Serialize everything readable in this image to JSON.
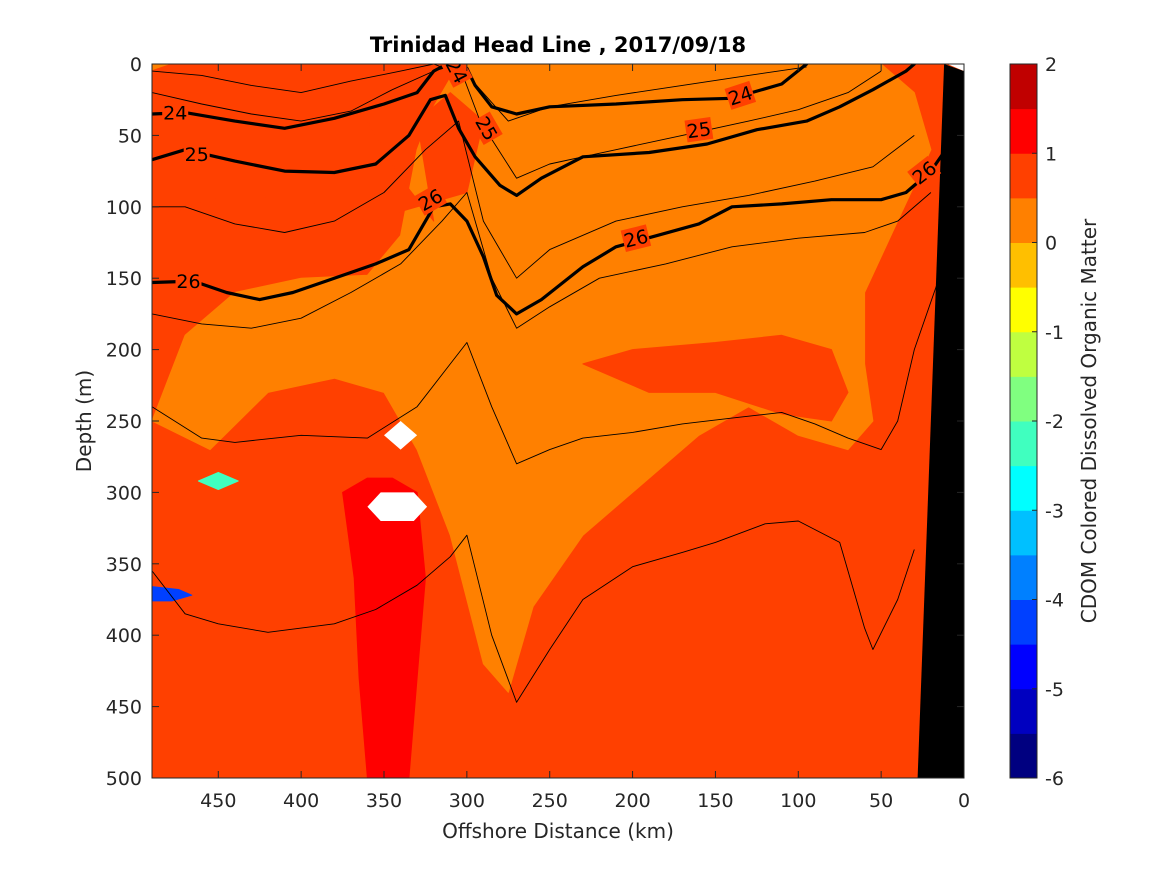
{
  "chart_data": {
    "type": "heatmap",
    "title": "Trinidad Head Line , 2017/09/18",
    "xlabel": "Offshore Distance (km)",
    "ylabel": "Depth (m)",
    "colorbar_label": "CDOM Colored Dissolved Organic Matter",
    "xlim": [
      490,
      0
    ],
    "ylim": [
      0,
      500
    ],
    "x_ticks": [
      "450",
      "400",
      "350",
      "300",
      "250",
      "200",
      "150",
      "100",
      "50",
      "0"
    ],
    "y_ticks": [
      "0",
      "50",
      "100",
      "150",
      "200",
      "250",
      "300",
      "350",
      "400",
      "450",
      "500"
    ],
    "colorbar_ticks": [
      "2",
      "1",
      "0",
      "-1",
      "-2",
      "-3",
      "-4",
      "-5",
      "-6"
    ],
    "colorbar_range": [
      -6,
      2
    ],
    "colorbar_step": 0.5,
    "colorbar_colors": [
      "#000080",
      "#0000c0",
      "#0000ff",
      "#0040ff",
      "#0080ff",
      "#00c0ff",
      "#00ffff",
      "#40ffbf",
      "#80ff80",
      "#bfff40",
      "#ffff00",
      "#ffbf00",
      "#ff8000",
      "#ff4000",
      "#ff0000",
      "#c00000"
    ],
    "background_value": 0.6,
    "regions": [
      {
        "value": 0.2,
        "points": [
          [
            490,
            250
          ],
          [
            470,
            190
          ],
          [
            440,
            160
          ],
          [
            400,
            150
          ],
          [
            360,
            148
          ],
          [
            340,
            120
          ],
          [
            330,
            60
          ],
          [
            320,
            30
          ],
          [
            310,
            10
          ],
          [
            300,
            0
          ],
          [
            250,
            0
          ],
          [
            200,
            0
          ],
          [
            150,
            0
          ],
          [
            100,
            0
          ],
          [
            50,
            0
          ],
          [
            30,
            20
          ],
          [
            20,
            60
          ],
          [
            40,
            110
          ],
          [
            60,
            160
          ],
          [
            60,
            210
          ],
          [
            55,
            250
          ],
          [
            70,
            270
          ],
          [
            100,
            260
          ],
          [
            130,
            240
          ],
          [
            160,
            260
          ],
          [
            200,
            300
          ],
          [
            230,
            330
          ],
          [
            260,
            380
          ],
          [
            275,
            440
          ],
          [
            290,
            420
          ],
          [
            310,
            330
          ],
          [
            330,
            270
          ],
          [
            350,
            230
          ],
          [
            380,
            220
          ],
          [
            420,
            230
          ],
          [
            455,
            270
          ]
        ]
      },
      {
        "value": 0.6,
        "points": [
          [
            490,
            30
          ],
          [
            470,
            30
          ],
          [
            440,
            40
          ],
          [
            410,
            50
          ],
          [
            380,
            45
          ],
          [
            360,
            40
          ],
          [
            350,
            60
          ],
          [
            340,
            80
          ],
          [
            320,
            110
          ],
          [
            330,
            40
          ],
          [
            310,
            20
          ],
          [
            290,
            40
          ],
          [
            300,
            90
          ],
          [
            330,
            100
          ],
          [
            360,
            110
          ],
          [
            380,
            100
          ],
          [
            410,
            95
          ],
          [
            440,
            90
          ],
          [
            470,
            100
          ],
          [
            490,
            120
          ]
        ]
      },
      {
        "value": 0.6,
        "points": [
          [
            230,
            210
          ],
          [
            200,
            200
          ],
          [
            150,
            195
          ],
          [
            110,
            190
          ],
          [
            80,
            200
          ],
          [
            70,
            230
          ],
          [
            80,
            250
          ],
          [
            110,
            245
          ],
          [
            150,
            230
          ],
          [
            190,
            230
          ]
        ]
      },
      {
        "value": 1.0,
        "points": [
          [
            375,
            300
          ],
          [
            360,
            290
          ],
          [
            345,
            290
          ],
          [
            330,
            300
          ],
          [
            325,
            360
          ],
          [
            330,
            430
          ],
          [
            335,
            500
          ],
          [
            360,
            500
          ],
          [
            365,
            430
          ],
          [
            368,
            360
          ]
        ]
      },
      {
        "value": 0.0,
        "points": [
          [
            520,
            0
          ],
          [
            510,
            0
          ],
          [
            500,
            8
          ],
          [
            480,
            0
          ],
          [
            520,
            0
          ]
        ]
      },
      {
        "value": 0.0,
        "points": [
          [
            282,
            0
          ],
          [
            276,
            8
          ],
          [
            266,
            8
          ],
          [
            258,
            0
          ]
        ]
      },
      {
        "value": -2.5,
        "points": [
          [
            462,
            292
          ],
          [
            450,
            286
          ],
          [
            438,
            292
          ],
          [
            450,
            298
          ]
        ]
      },
      {
        "value": -4.5,
        "points": [
          [
            490,
            366
          ],
          [
            474,
            368
          ],
          [
            466,
            372
          ],
          [
            478,
            376
          ],
          [
            490,
            376
          ]
        ]
      }
    ],
    "white_gaps": [
      {
        "points": [
          [
            350,
            260
          ],
          [
            340,
            250
          ],
          [
            330,
            260
          ],
          [
            340,
            270
          ]
        ]
      },
      {
        "points": [
          [
            360,
            310
          ],
          [
            352,
            300
          ],
          [
            332,
            300
          ],
          [
            324,
            310
          ],
          [
            332,
            320
          ],
          [
            352,
            320
          ]
        ]
      }
    ],
    "bathymetry": [
      [
        28,
        500
      ],
      [
        0,
        500
      ],
      [
        0,
        5
      ],
      [
        12,
        0
      ]
    ],
    "white_patch": [
      [
        10,
        0
      ],
      [
        0,
        0
      ],
      [
        0,
        5
      ]
    ],
    "contours_thin": [
      [
        [
          490,
          240
        ],
        [
          460,
          262
        ],
        [
          440,
          265
        ],
        [
          400,
          260
        ],
        [
          360,
          262
        ],
        [
          330,
          240
        ],
        [
          310,
          210
        ],
        [
          300,
          195
        ],
        [
          285,
          240
        ],
        [
          270,
          280
        ],
        [
          250,
          270
        ],
        [
          230,
          262
        ],
        [
          200,
          258
        ],
        [
          170,
          252
        ],
        [
          140,
          248
        ],
        [
          110,
          244
        ],
        [
          90,
          252
        ],
        [
          70,
          262
        ],
        [
          50,
          270
        ],
        [
          40,
          250
        ],
        [
          30,
          200
        ],
        [
          15,
          150
        ]
      ],
      [
        [
          490,
          355
        ],
        [
          470,
          385
        ],
        [
          450,
          392
        ],
        [
          420,
          398
        ],
        [
          380,
          392
        ],
        [
          355,
          382
        ],
        [
          330,
          365
        ],
        [
          310,
          345
        ],
        [
          300,
          330
        ],
        [
          285,
          400
        ],
        [
          270,
          447
        ],
        [
          250,
          410
        ],
        [
          230,
          375
        ],
        [
          200,
          352
        ],
        [
          170,
          342
        ],
        [
          150,
          335
        ],
        [
          120,
          322
        ],
        [
          100,
          320
        ],
        [
          75,
          335
        ],
        [
          60,
          395
        ],
        [
          55,
          410
        ],
        [
          40,
          375
        ],
        [
          30,
          340
        ]
      ],
      [
        [
          490,
          175
        ],
        [
          460,
          182
        ],
        [
          430,
          185
        ],
        [
          400,
          178
        ],
        [
          370,
          160
        ],
        [
          340,
          140
        ],
        [
          315,
          110
        ],
        [
          300,
          90
        ],
        [
          285,
          150
        ],
        [
          270,
          185
        ],
        [
          250,
          170
        ],
        [
          220,
          150
        ],
        [
          180,
          140
        ],
        [
          140,
          128
        ],
        [
          100,
          122
        ],
        [
          60,
          118
        ],
        [
          40,
          110
        ],
        [
          20,
          90
        ]
      ],
      [
        [
          490,
          100
        ],
        [
          470,
          100
        ],
        [
          440,
          112
        ],
        [
          410,
          118
        ],
        [
          380,
          110
        ],
        [
          350,
          90
        ],
        [
          325,
          60
        ],
        [
          305,
          40
        ],
        [
          290,
          110
        ],
        [
          270,
          150
        ],
        [
          250,
          130
        ],
        [
          210,
          110
        ],
        [
          170,
          100
        ],
        [
          130,
          92
        ],
        [
          90,
          82
        ],
        [
          55,
          72
        ],
        [
          30,
          50
        ]
      ],
      [
        [
          490,
          20
        ],
        [
          460,
          28
        ],
        [
          430,
          35
        ],
        [
          400,
          40
        ],
        [
          370,
          33
        ],
        [
          345,
          18
        ],
        [
          320,
          5
        ],
        [
          305,
          0
        ],
        [
          292,
          40
        ],
        [
          270,
          80
        ],
        [
          250,
          70
        ],
        [
          210,
          60
        ],
        [
          170,
          50
        ],
        [
          130,
          40
        ],
        [
          100,
          32
        ],
        [
          70,
          20
        ],
        [
          50,
          5
        ]
      ],
      [
        [
          490,
          5
        ],
        [
          460,
          8
        ],
        [
          430,
          15
        ],
        [
          400,
          20
        ],
        [
          370,
          12
        ],
        [
          340,
          5
        ],
        [
          320,
          0
        ],
        [
          298,
          10
        ],
        [
          275,
          40
        ],
        [
          250,
          30
        ],
        [
          210,
          22
        ],
        [
          170,
          15
        ],
        [
          130,
          8
        ],
        [
          95,
          2
        ]
      ]
    ],
    "contours_thick": [
      {
        "label": "24",
        "points": [
          [
            490,
            35
          ],
          [
            470,
            34
          ],
          [
            440,
            40
          ],
          [
            410,
            45
          ],
          [
            380,
            38
          ],
          [
            350,
            28
          ],
          [
            330,
            20
          ],
          [
            320,
            5
          ],
          [
            312,
            0
          ],
          [
            300,
            3
          ],
          [
            295,
            15
          ],
          [
            285,
            30
          ],
          [
            270,
            35
          ],
          [
            250,
            30
          ],
          [
            210,
            28
          ],
          [
            170,
            25
          ],
          [
            140,
            24
          ],
          [
            110,
            14
          ],
          [
            95,
            0
          ]
        ]
      },
      {
        "label": "25",
        "points": [
          [
            490,
            67
          ],
          [
            470,
            60
          ],
          [
            440,
            68
          ],
          [
            410,
            75
          ],
          [
            380,
            76
          ],
          [
            355,
            70
          ],
          [
            335,
            50
          ],
          [
            322,
            25
          ],
          [
            313,
            22
          ],
          [
            305,
            45
          ],
          [
            295,
            65
          ],
          [
            280,
            85
          ],
          [
            270,
            92
          ],
          [
            255,
            80
          ],
          [
            230,
            65
          ],
          [
            190,
            62
          ],
          [
            155,
            56
          ],
          [
            125,
            46
          ],
          [
            95,
            40
          ],
          [
            75,
            30
          ],
          [
            55,
            18
          ],
          [
            35,
            5
          ],
          [
            30,
            0
          ]
        ]
      },
      {
        "label": "26",
        "points": [
          [
            490,
            153
          ],
          [
            465,
            152
          ],
          [
            445,
            160
          ],
          [
            425,
            165
          ],
          [
            405,
            160
          ],
          [
            385,
            152
          ],
          [
            355,
            140
          ],
          [
            335,
            130
          ],
          [
            320,
            100
          ],
          [
            310,
            98
          ],
          [
            300,
            110
          ],
          [
            290,
            135
          ],
          [
            282,
            162
          ],
          [
            270,
            175
          ],
          [
            255,
            165
          ],
          [
            230,
            142
          ],
          [
            210,
            128
          ],
          [
            185,
            120
          ],
          [
            160,
            112
          ],
          [
            140,
            100
          ],
          [
            110,
            98
          ],
          [
            80,
            95
          ],
          [
            50,
            95
          ],
          [
            35,
            90
          ],
          [
            20,
            75
          ],
          [
            8,
            55
          ]
        ]
      }
    ],
    "contour_labels": [
      {
        "text": "24",
        "x": 476,
        "y": 34,
        "angle": 0
      },
      {
        "text": "24",
        "x": 306,
        "y": 5,
        "angle": 62
      },
      {
        "text": "24",
        "x": 135,
        "y": 22,
        "angle": -18
      },
      {
        "text": "25",
        "x": 463,
        "y": 63,
        "angle": 0
      },
      {
        "text": "25",
        "x": 288,
        "y": 45,
        "angle": 60
      },
      {
        "text": "25",
        "x": 160,
        "y": 46,
        "angle": -8
      },
      {
        "text": "26",
        "x": 468,
        "y": 152,
        "angle": 0
      },
      {
        "text": "26",
        "x": 322,
        "y": 95,
        "angle": -30
      },
      {
        "text": "26",
        "x": 198,
        "y": 122,
        "angle": -14
      },
      {
        "text": "26",
        "x": 24,
        "y": 76,
        "angle": -38
      }
    ]
  }
}
